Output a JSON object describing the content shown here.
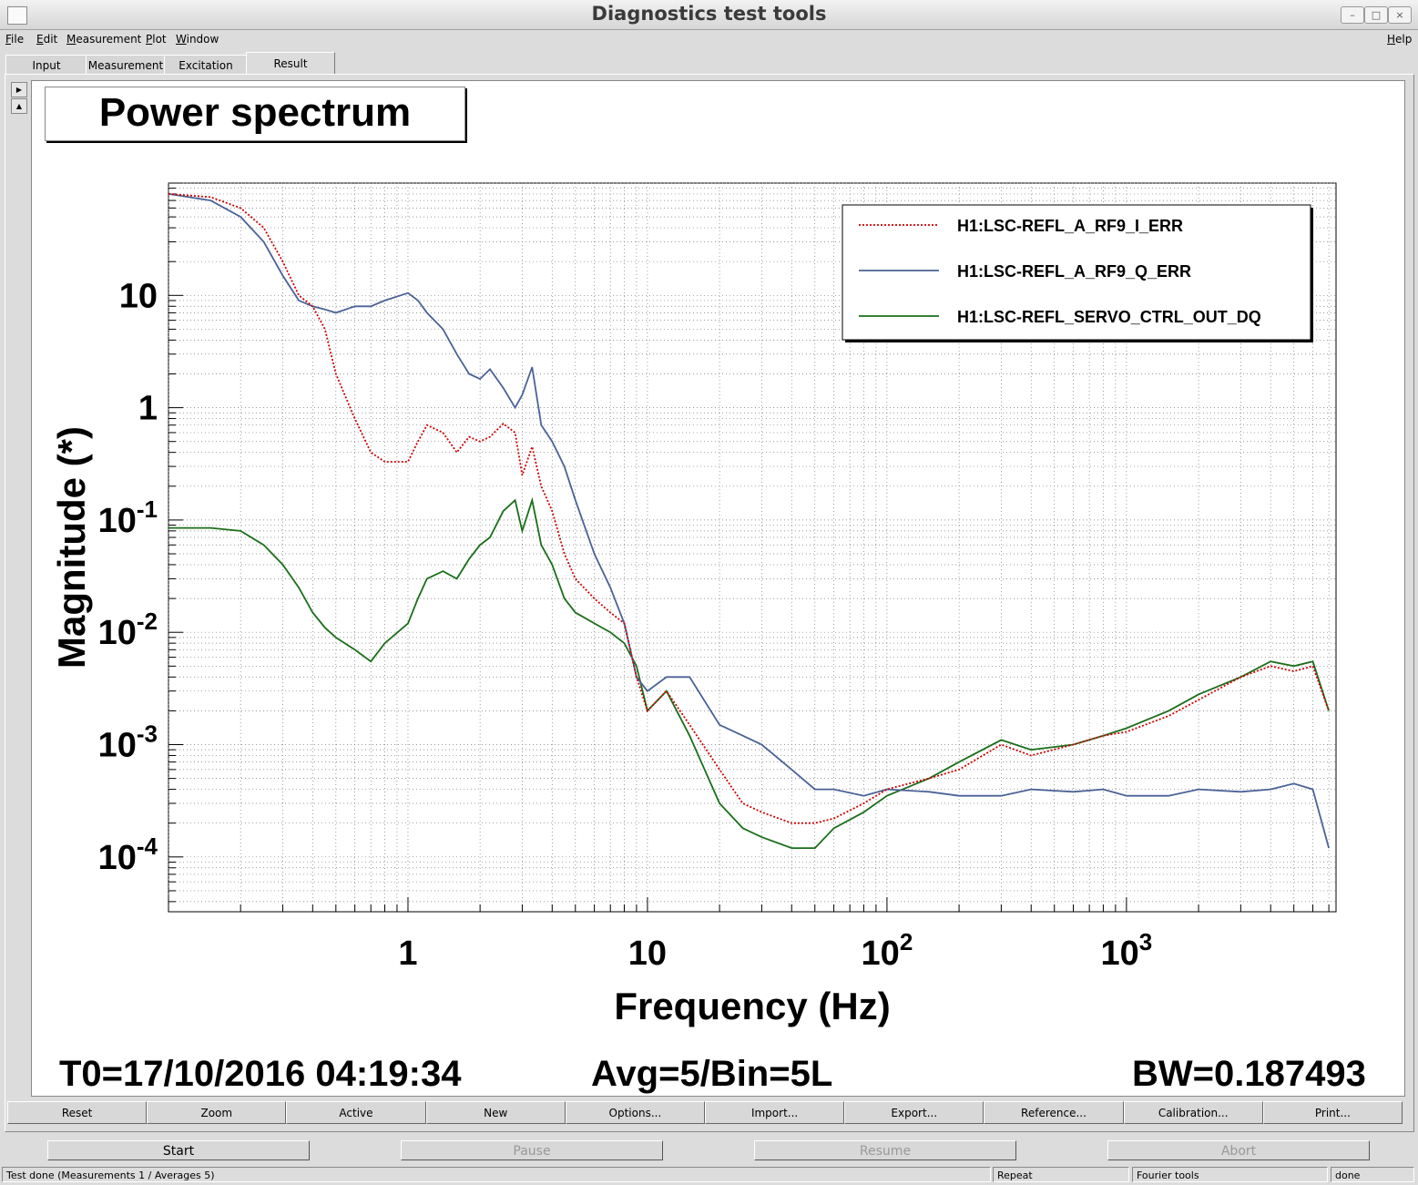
{
  "window": {
    "title": "Diagnostics test tools"
  },
  "menubar": {
    "items": [
      {
        "label": "File",
        "key": "F",
        "rest": "ile"
      },
      {
        "label": "Edit",
        "key": "E",
        "rest": "dit"
      },
      {
        "label": "Measurement",
        "key": "M",
        "rest": "easurement"
      },
      {
        "label": "Plot",
        "key": "P",
        "rest": "lot"
      },
      {
        "label": "Window",
        "key": "W",
        "rest": "indow"
      }
    ],
    "help": {
      "label": "Help",
      "key": "H",
      "rest": "elp"
    }
  },
  "tabs": [
    "Input",
    "Measurement",
    "Excitation",
    "Result"
  ],
  "active_tab": "Result",
  "plot_title": "Power spectrum",
  "info": {
    "t0": "T0=17/10/2016 04:19:34",
    "avg": "Avg=5/Bin=5L",
    "bw": "BW=0.187493"
  },
  "plot_buttons": [
    "Reset",
    "Zoom",
    "Active",
    "New",
    "Options...",
    "Import...",
    "Export...",
    "Reference...",
    "Calibration...",
    "Print..."
  ],
  "control_buttons": [
    {
      "label": "Start",
      "enabled": true
    },
    {
      "label": "Pause",
      "enabled": false
    },
    {
      "label": "Resume",
      "enabled": false
    },
    {
      "label": "Abort",
      "enabled": false
    }
  ],
  "status_bar": {
    "message": "Test done (Measurements 1 / Averages 5)",
    "mode": "Repeat",
    "tool": "Fourier tools",
    "state": "done"
  },
  "chart_data": {
    "type": "line",
    "title": "Power spectrum",
    "xlabel": "Frequency (Hz)",
    "ylabel": "Magnitude (*)",
    "xscale": "log",
    "yscale": "log",
    "xlim": [
      0.1,
      7500
    ],
    "ylim": [
      3.25e-05,
      100
    ],
    "x_ticks": [
      {
        "value": 1,
        "base": "1",
        "exp": ""
      },
      {
        "value": 10,
        "base": "10",
        "exp": ""
      },
      {
        "value": 100,
        "base": "10",
        "exp": "2"
      },
      {
        "value": 1000,
        "base": "10",
        "exp": "3"
      }
    ],
    "y_ticks": [
      {
        "value": 10,
        "base": "10",
        "exp": ""
      },
      {
        "value": 1,
        "base": "1",
        "exp": ""
      },
      {
        "value": 0.1,
        "base": "10",
        "exp": "-1"
      },
      {
        "value": 0.01,
        "base": "10",
        "exp": "-2"
      },
      {
        "value": 0.001,
        "base": "10",
        "exp": "-3"
      },
      {
        "value": 0.0001,
        "base": "10",
        "exp": "-4"
      }
    ],
    "grid": true,
    "legend_position": "top-right",
    "series": [
      {
        "name": "H1:LSC-REFL_A_RF9_I_ERR",
        "color": "#cc0000",
        "style": "dotted",
        "x": [
          0.1,
          0.15,
          0.2,
          0.25,
          0.3,
          0.35,
          0.4,
          0.45,
          0.5,
          0.6,
          0.7,
          0.8,
          1.0,
          1.1,
          1.2,
          1.4,
          1.6,
          1.8,
          2.0,
          2.2,
          2.5,
          2.8,
          3.0,
          3.3,
          3.6,
          4.0,
          4.5,
          5,
          6,
          7,
          8,
          9,
          10,
          12,
          15,
          20,
          25,
          30,
          40,
          50,
          60,
          80,
          100,
          150,
          200,
          300,
          400,
          600,
          800,
          1000,
          1500,
          2000,
          3000,
          4000,
          5000,
          6000,
          7000
        ],
        "y": [
          80,
          75,
          60,
          40,
          20,
          10,
          8,
          5,
          2.0,
          0.8,
          0.4,
          0.33,
          0.33,
          0.5,
          0.7,
          0.6,
          0.4,
          0.55,
          0.5,
          0.55,
          0.72,
          0.6,
          0.25,
          0.45,
          0.2,
          0.12,
          0.05,
          0.03,
          0.02,
          0.015,
          0.012,
          0.004,
          0.002,
          0.003,
          0.0015,
          0.0006,
          0.0003,
          0.00025,
          0.0002,
          0.0002,
          0.00022,
          0.0003,
          0.0004,
          0.0005,
          0.0006,
          0.001,
          0.0008,
          0.001,
          0.0012,
          0.0013,
          0.0018,
          0.0025,
          0.004,
          0.005,
          0.0045,
          0.005,
          0.002
        ]
      },
      {
        "name": "H1:LSC-REFL_A_RF9_Q_ERR",
        "color": "#4a6296",
        "style": "solid",
        "x": [
          0.1,
          0.15,
          0.2,
          0.25,
          0.3,
          0.35,
          0.4,
          0.45,
          0.5,
          0.6,
          0.7,
          0.8,
          1.0,
          1.1,
          1.2,
          1.4,
          1.6,
          1.8,
          2.0,
          2.2,
          2.5,
          2.8,
          3.0,
          3.3,
          3.6,
          4.0,
          4.5,
          5,
          6,
          7,
          8,
          9,
          10,
          12,
          15,
          20,
          25,
          30,
          40,
          50,
          60,
          80,
          100,
          150,
          200,
          300,
          400,
          600,
          800,
          1000,
          1500,
          2000,
          3000,
          4000,
          5000,
          6000,
          7000
        ],
        "y": [
          80,
          70,
          50,
          30,
          15,
          9,
          8,
          7.5,
          7,
          8,
          8,
          9,
          10.5,
          9,
          7,
          5,
          3,
          2,
          1.8,
          2.2,
          1.5,
          1.0,
          1.3,
          2.3,
          0.7,
          0.5,
          0.3,
          0.15,
          0.05,
          0.025,
          0.012,
          0.004,
          0.003,
          0.004,
          0.004,
          0.0015,
          0.0012,
          0.001,
          0.0006,
          0.0004,
          0.0004,
          0.00035,
          0.0004,
          0.00038,
          0.00035,
          0.00035,
          0.0004,
          0.00038,
          0.0004,
          0.00035,
          0.00035,
          0.0004,
          0.00038,
          0.0004,
          0.00045,
          0.0004,
          0.00012
        ]
      },
      {
        "name": "H1:LSC-REFL_SERVO_CTRL_OUT_DQ",
        "color": "#1a6e1a",
        "style": "solid",
        "x": [
          0.1,
          0.15,
          0.2,
          0.25,
          0.3,
          0.35,
          0.4,
          0.45,
          0.5,
          0.6,
          0.7,
          0.8,
          1.0,
          1.1,
          1.2,
          1.4,
          1.6,
          1.8,
          2.0,
          2.2,
          2.5,
          2.8,
          3.0,
          3.3,
          3.6,
          4.0,
          4.5,
          5,
          6,
          7,
          8,
          9,
          10,
          12,
          15,
          20,
          25,
          30,
          40,
          50,
          60,
          80,
          100,
          150,
          200,
          300,
          400,
          600,
          800,
          1000,
          1500,
          2000,
          3000,
          4000,
          5000,
          6000,
          7000
        ],
        "y": [
          0.085,
          0.085,
          0.08,
          0.06,
          0.04,
          0.025,
          0.015,
          0.011,
          0.009,
          0.007,
          0.0055,
          0.008,
          0.012,
          0.02,
          0.03,
          0.035,
          0.03,
          0.045,
          0.06,
          0.07,
          0.12,
          0.15,
          0.08,
          0.15,
          0.06,
          0.04,
          0.02,
          0.015,
          0.012,
          0.01,
          0.008,
          0.005,
          0.002,
          0.003,
          0.0012,
          0.0003,
          0.00018,
          0.00015,
          0.00012,
          0.00012,
          0.00018,
          0.00025,
          0.00035,
          0.0005,
          0.0007,
          0.0011,
          0.0009,
          0.001,
          0.0012,
          0.0014,
          0.002,
          0.0028,
          0.004,
          0.0055,
          0.005,
          0.0055,
          0.002
        ]
      }
    ]
  }
}
